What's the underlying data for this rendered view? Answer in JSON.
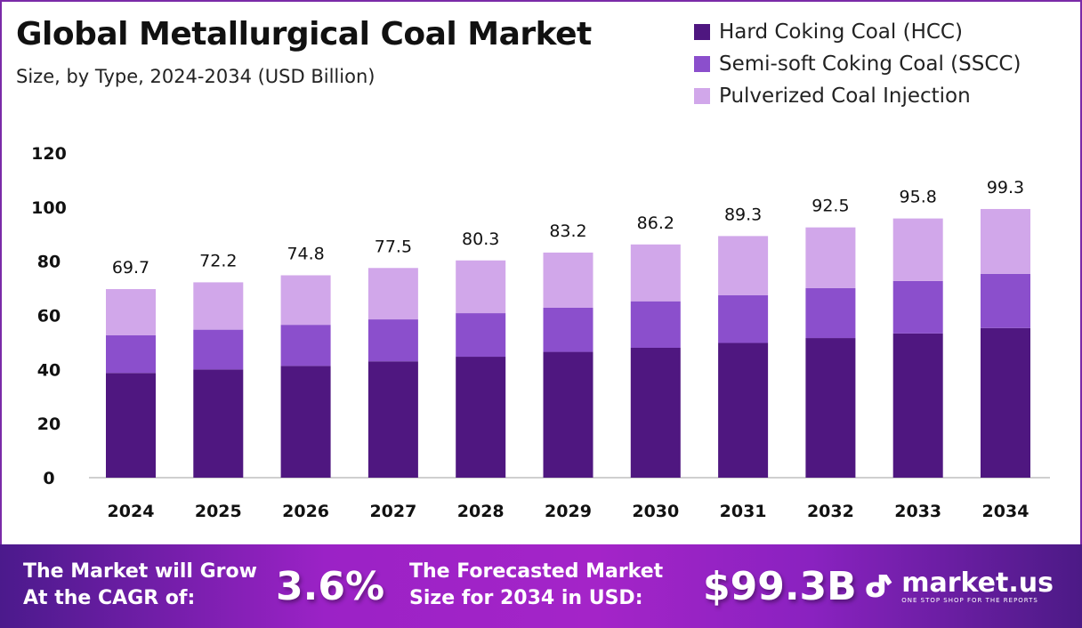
{
  "chart_data": {
    "type": "bar",
    "stacked": true,
    "title": "Global Metallurgical Coal Market",
    "subtitle": "Size, by Type, 2024-2034 (USD Billion)",
    "categories": [
      "2024",
      "2025",
      "2026",
      "2027",
      "2028",
      "2029",
      "2030",
      "2031",
      "2032",
      "2033",
      "2034"
    ],
    "series": [
      {
        "name": "Hard Coking Coal (HCC)",
        "color": "#4f1780",
        "values": [
          38.7,
          40.0,
          41.3,
          43.0,
          44.7,
          46.5,
          48.0,
          49.8,
          51.6,
          53.3,
          55.3
        ]
      },
      {
        "name": "Semi-soft Coking Coal (SSCC)",
        "color": "#8b4fcc",
        "values": [
          13.9,
          14.7,
          15.2,
          15.5,
          16.1,
          16.3,
          17.2,
          17.6,
          18.5,
          19.4,
          20.0
        ]
      },
      {
        "name": "Pulverized Coal Injection",
        "color": "#d1a7ea",
        "values": [
          17.1,
          17.5,
          18.3,
          19.0,
          19.5,
          20.4,
          21.0,
          21.9,
          22.4,
          23.1,
          24.0
        ]
      }
    ],
    "totals": [
      "69.7",
      "72.2",
      "74.8",
      "77.5",
      "80.3",
      "83.2",
      "86.2",
      "89.3",
      "92.5",
      "95.8",
      "99.3"
    ],
    "ylim": [
      0,
      120
    ],
    "yticks": [
      "0",
      "20",
      "40",
      "60",
      "80",
      "100",
      "120"
    ],
    "xlabel": "",
    "ylabel": "",
    "grid": false,
    "legend": "top-right"
  },
  "footer": {
    "cagr_label_1": "The Market will Grow",
    "cagr_label_2": "At the CAGR of:",
    "cagr_value": "3.6%",
    "forecast_label_1": "The Forecasted Market",
    "forecast_label_2": "Size for 2034 in USD:",
    "forecast_value": "$99.3B",
    "brand": "market.us",
    "brand_tagline": "ONE STOP SHOP FOR THE REPORTS"
  }
}
